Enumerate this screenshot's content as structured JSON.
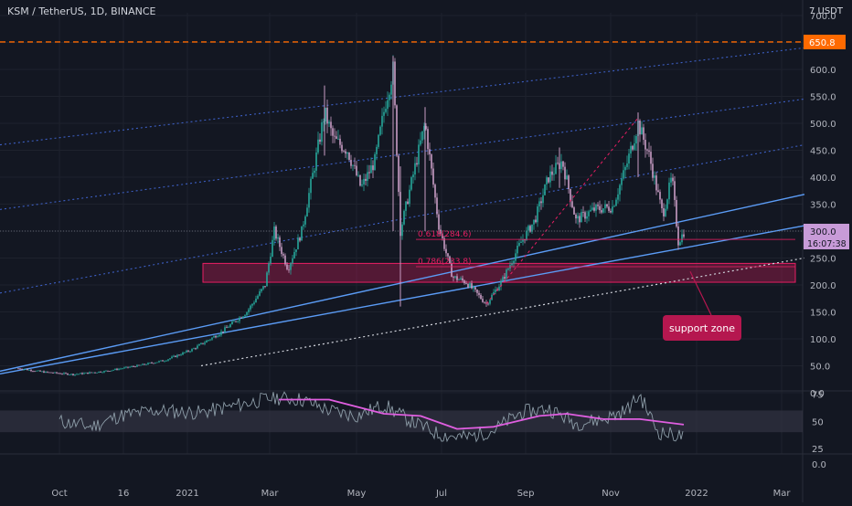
{
  "header": {
    "title": "KSM / TetherUS, 1D, BINANCE",
    "currency": "7 USDT"
  },
  "colors": {
    "background": "#131722",
    "grid": "#1e222d",
    "up": "#26a69a",
    "down": "#c99cc4",
    "channel_blue": "#5b9cf6",
    "channel_dotted": "#3d5fc4",
    "dotted_white": "#d1d4dc",
    "zone_fill": "#e91e63",
    "last_price_bg": "#c89bd8",
    "level_line": "#ff6a00",
    "fib": "#e91e63",
    "rsi": "#8d9da8",
    "rsi_ma": "#e05ee0",
    "rsi_band": "#3a3a4a",
    "badge": "#b5174f"
  },
  "chart_data": [
    {
      "type": "candlestick",
      "symbol": "KSM / TetherUS",
      "timeframe": "1D",
      "exchange": "BINANCE",
      "y_ticks": [
        0.0,
        50.0,
        100.0,
        150.0,
        200.0,
        250.0,
        300.0,
        350.0,
        400.0,
        450.0,
        500.0,
        550.0,
        600.0,
        650.0,
        700.0
      ],
      "y_tick_labels": [
        "0.0",
        "50.0",
        "100.0",
        "150.0",
        "200.0",
        "250.0",
        "300.0",
        "350.0",
        "400.0",
        "450.0",
        "500.0",
        "550.0",
        "600.0",
        "",
        "700.0"
      ],
      "ylim": [
        0,
        705
      ],
      "x_ticks": [
        "Oct",
        "16",
        "2021",
        "Mar",
        "May",
        "Jul",
        "Sep",
        "Nov",
        "2022",
        "Mar"
      ],
      "price_path": [
        {
          "t": 0,
          "v": 45
        },
        {
          "t": 30,
          "v": 38
        },
        {
          "t": 60,
          "v": 34
        },
        {
          "t": 95,
          "v": 40
        },
        {
          "t": 130,
          "v": 50
        },
        {
          "t": 160,
          "v": 60
        },
        {
          "t": 190,
          "v": 80
        },
        {
          "t": 220,
          "v": 110
        },
        {
          "t": 250,
          "v": 150
        },
        {
          "t": 270,
          "v": 200
        },
        {
          "t": 280,
          "v": 300
        },
        {
          "t": 295,
          "v": 230
        },
        {
          "t": 310,
          "v": 300
        },
        {
          "t": 325,
          "v": 430
        },
        {
          "t": 335,
          "v": 520
        },
        {
          "t": 345,
          "v": 470
        },
        {
          "t": 360,
          "v": 450
        },
        {
          "t": 375,
          "v": 380
        },
        {
          "t": 390,
          "v": 430
        },
        {
          "t": 402,
          "v": 540
        },
        {
          "t": 410,
          "v": 600
        },
        {
          "t": 418,
          "v": 300
        },
        {
          "t": 430,
          "v": 390
        },
        {
          "t": 445,
          "v": 500
        },
        {
          "t": 460,
          "v": 310
        },
        {
          "t": 475,
          "v": 215
        },
        {
          "t": 490,
          "v": 205
        },
        {
          "t": 512,
          "v": 165
        },
        {
          "t": 530,
          "v": 210
        },
        {
          "t": 550,
          "v": 280
        },
        {
          "t": 565,
          "v": 320
        },
        {
          "t": 580,
          "v": 400
        },
        {
          "t": 595,
          "v": 430
        },
        {
          "t": 610,
          "v": 320
        },
        {
          "t": 630,
          "v": 340
        },
        {
          "t": 650,
          "v": 345
        },
        {
          "t": 665,
          "v": 420
        },
        {
          "t": 678,
          "v": 500
        },
        {
          "t": 690,
          "v": 440
        },
        {
          "t": 705,
          "v": 330
        },
        {
          "t": 715,
          "v": 400
        },
        {
          "t": 722,
          "v": 280
        },
        {
          "t": 728,
          "v": 298
        }
      ],
      "wick_spikes": [
        {
          "t": 410,
          "hi": 625,
          "lo": 300
        },
        {
          "t": 418,
          "hi": 420,
          "lo": 160
        },
        {
          "t": 445,
          "hi": 530,
          "lo": 300
        },
        {
          "t": 678,
          "hi": 520,
          "lo": 400
        },
        {
          "t": 335,
          "hi": 570,
          "lo": 440
        },
        {
          "t": 592,
          "hi": 455,
          "lo": 380
        }
      ],
      "horizontal_levels": [
        {
          "value": 650.8,
          "label": "650.8"
        }
      ],
      "last_price": {
        "value": 300.0,
        "label": "300.0",
        "countdown": "16:07:38"
      },
      "fib_levels": [
        {
          "ratio": "0.618",
          "value": 284.6,
          "label": "0.618(284.6)"
        },
        {
          "ratio": "0.786",
          "value": 233.8,
          "label": "0.786(233.8)"
        }
      ],
      "support_zone": {
        "low": 205,
        "high": 240,
        "label": "support zone"
      },
      "channels": [
        {
          "style": "solid",
          "from": [
            0,
            40
          ],
          "to": [
            880,
            368
          ]
        },
        {
          "style": "solid",
          "from": [
            0,
            35
          ],
          "to": [
            880,
            310
          ]
        },
        {
          "style": "dotted",
          "from": [
            220,
            50
          ],
          "to": [
            880,
            250
          ]
        },
        {
          "style": "dotted-blue",
          "from": [
            0,
            185
          ],
          "to": [
            880,
            460
          ]
        },
        {
          "style": "dotted-blue",
          "from": [
            0,
            340
          ],
          "to": [
            880,
            545
          ]
        },
        {
          "style": "dotted-blue",
          "from": [
            0,
            460
          ],
          "to": [
            880,
            640
          ]
        }
      ]
    },
    {
      "type": "line",
      "indicator": "RSI",
      "y_ticks": [
        0.0,
        25,
        50,
        75
      ],
      "y_tick_labels": [
        "0.0",
        "25",
        "50",
        "75"
      ],
      "ylim": [
        20,
        78
      ],
      "band": [
        40,
        60
      ],
      "rsi_path": [
        {
          "t": 45,
          "v": 50
        },
        {
          "t": 80,
          "v": 45
        },
        {
          "t": 110,
          "v": 55
        },
        {
          "t": 150,
          "v": 60
        },
        {
          "t": 200,
          "v": 58
        },
        {
          "t": 240,
          "v": 65
        },
        {
          "t": 280,
          "v": 72
        },
        {
          "t": 310,
          "v": 70
        },
        {
          "t": 340,
          "v": 60
        },
        {
          "t": 370,
          "v": 55
        },
        {
          "t": 400,
          "v": 65
        },
        {
          "t": 430,
          "v": 50
        },
        {
          "t": 460,
          "v": 38
        },
        {
          "t": 490,
          "v": 35
        },
        {
          "t": 520,
          "v": 42
        },
        {
          "t": 550,
          "v": 58
        },
        {
          "t": 580,
          "v": 62
        },
        {
          "t": 610,
          "v": 48
        },
        {
          "t": 640,
          "v": 52
        },
        {
          "t": 665,
          "v": 60
        },
        {
          "t": 680,
          "v": 74
        },
        {
          "t": 700,
          "v": 40
        },
        {
          "t": 728,
          "v": 36
        }
      ],
      "rsi_ma_path": [
        {
          "t": 285,
          "v": 70
        },
        {
          "t": 340,
          "v": 70
        },
        {
          "t": 400,
          "v": 57
        },
        {
          "t": 440,
          "v": 55
        },
        {
          "t": 480,
          "v": 43
        },
        {
          "t": 520,
          "v": 45
        },
        {
          "t": 570,
          "v": 55
        },
        {
          "t": 600,
          "v": 57
        },
        {
          "t": 640,
          "v": 52
        },
        {
          "t": 680,
          "v": 52
        },
        {
          "t": 728,
          "v": 47
        }
      ]
    }
  ]
}
